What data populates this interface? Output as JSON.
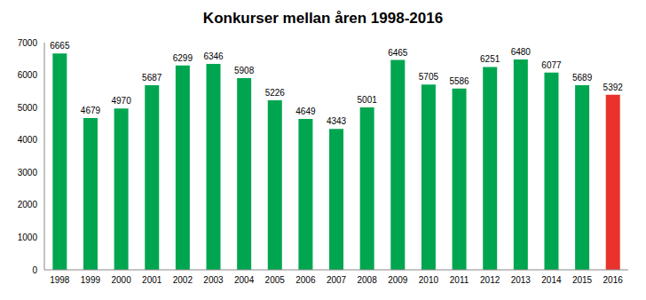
{
  "chart_data": {
    "type": "bar",
    "title": "Konkurser mellan åren 1998-2016",
    "categories": [
      "1998",
      "1999",
      "2000",
      "2001",
      "2002",
      "2003",
      "2004",
      "2005",
      "2006",
      "2007",
      "2008",
      "2009",
      "2010",
      "2011",
      "2012",
      "2013",
      "2014",
      "2015",
      "2016"
    ],
    "values": [
      6665,
      4679,
      4970,
      5687,
      6299,
      6346,
      5908,
      5226,
      4649,
      4343,
      5001,
      6465,
      5705,
      5586,
      6251,
      6480,
      6077,
      5689,
      5392
    ],
    "colors": [
      "#00a64f",
      "#00a64f",
      "#00a64f",
      "#00a64f",
      "#00a64f",
      "#00a64f",
      "#00a64f",
      "#00a64f",
      "#00a64f",
      "#00a64f",
      "#00a64f",
      "#00a64f",
      "#00a64f",
      "#00a64f",
      "#00a64f",
      "#00a64f",
      "#00a64f",
      "#00a64f",
      "#e8322b"
    ],
    "ylim": [
      0,
      7000
    ],
    "yticks": [
      0,
      1000,
      2000,
      3000,
      4000,
      5000,
      6000,
      7000
    ],
    "grid": false,
    "data_labels": true
  }
}
